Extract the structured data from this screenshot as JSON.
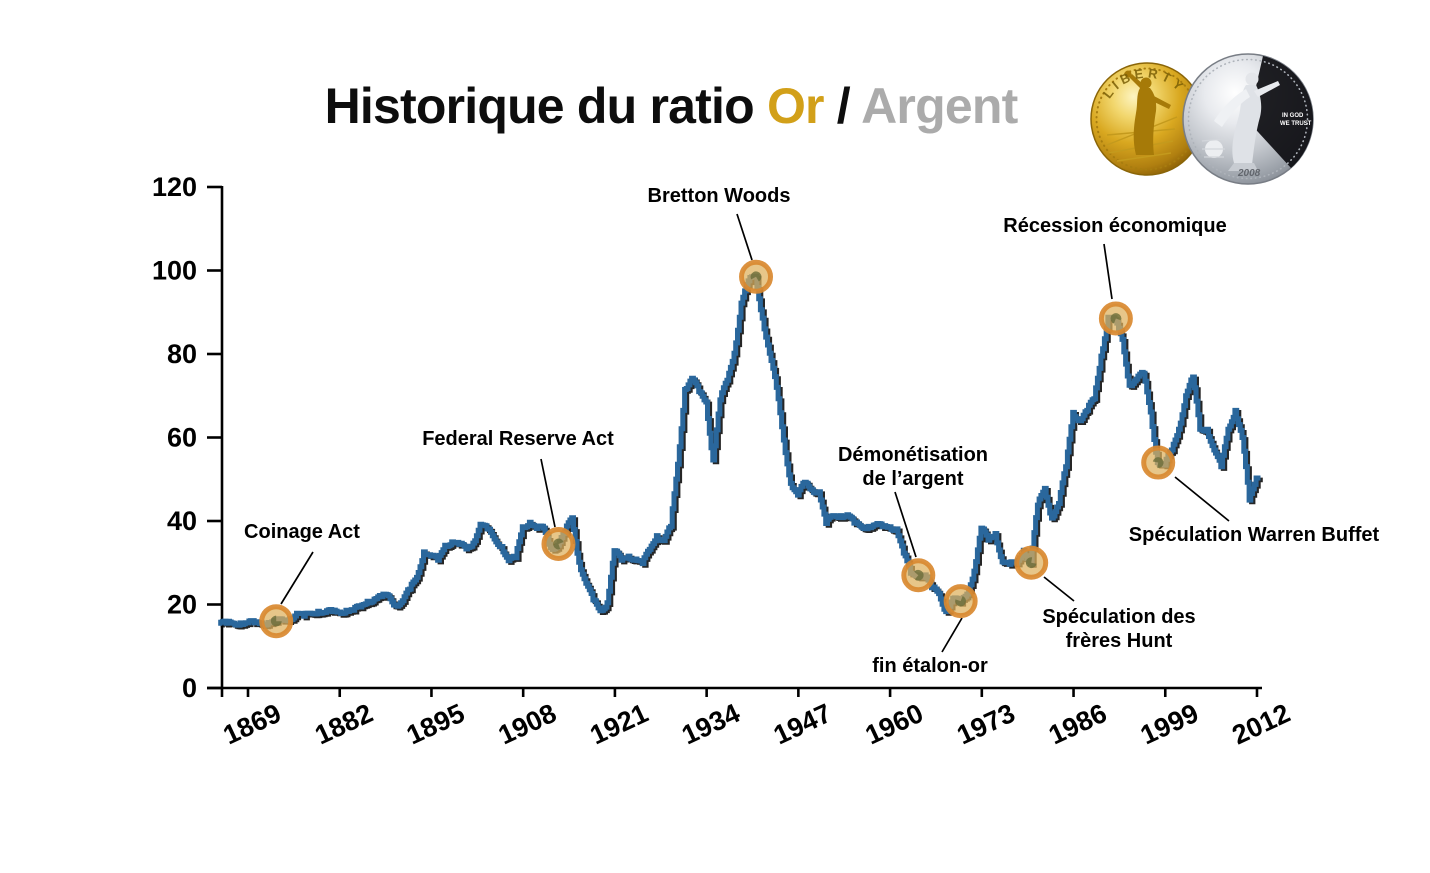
{
  "title": {
    "part1": "Historique du ratio ",
    "part2": "Or",
    "part3": " / ",
    "part4": "Argent"
  },
  "coins": {
    "gold_text": "LIBERTY",
    "silver_text_1": "IN GOD",
    "silver_text_2": "WE TRUST",
    "silver_year": "2008"
  },
  "colors": {
    "line": "#2a679c",
    "marker_ring": "#d98930",
    "marker_fill": "#deb05c",
    "marker_glyph": "#6c6d39",
    "title_gold": "#d2a019",
    "title_silver": "#ababab"
  },
  "chart_data": {
    "type": "line",
    "title": "Historique du ratio Or / Argent",
    "xlabel": "",
    "ylabel": "",
    "ylim": [
      0,
      120
    ],
    "grid": false,
    "xticks": [
      1869,
      1882,
      1895,
      1908,
      1921,
      1934,
      1947,
      1960,
      1973,
      1986,
      1999,
      2012
    ],
    "yticks": [
      0,
      20,
      40,
      60,
      80,
      100,
      120
    ],
    "x_start_year": 1865,
    "series": [
      {
        "name": "ratio Or / Argent",
        "values": [
          15.5,
          15.5,
          15.5,
          15.6,
          15.6,
          15.6,
          15.6,
          15.7,
          15.9,
          16.2,
          16.6,
          17.9,
          17.2,
          17.9,
          18.4,
          18.1,
          18.3,
          18.2,
          18.6,
          18.6,
          19.4,
          20.8,
          21.3,
          21.9,
          22.1,
          19.8,
          20.9,
          23.7,
          26.5,
          32.6,
          31.6,
          30.6,
          34.2,
          35.0,
          34.4,
          33.3,
          34.7,
          39.2,
          38.1,
          35.7,
          33.9,
          30.5,
          31.2,
          38.6,
          39.7,
          38.2,
          38.3,
          33.6,
          34.2,
          37.4,
          40.8,
          30.1,
          25.1,
          21.1,
          18.5,
          20.4,
          32.9,
          30.6,
          31.6,
          30.9,
          29.8,
          33.2,
          36.5,
          35.3,
          38.7,
          53.6,
          71.5,
          74.2,
          71.0,
          68.5,
          54.6,
          69.0,
          73.7,
          80.2,
          92.2,
          97.5,
          98.6,
          88.6,
          80.2,
          72.0,
          59.4,
          49.0,
          46.2,
          49.3,
          47.5,
          47.0,
          39.4,
          41.3,
          41.3,
          41.5,
          39.5,
          38.6,
          38.7,
          39.1,
          38.6,
          38.6,
          38.1,
          32.3,
          27.5,
          27.1,
          27.1,
          24.0,
          22.6,
          18.3,
          21.5,
          20.5,
          22.5,
          28.0,
          38.3,
          35.4,
          37.0,
          30.2,
          29.6,
          29.9,
          33.0,
          29.8,
          43.8,
          47.8,
          40.7,
          44.2,
          53.0,
          66.0,
          64.0,
          66.5,
          69.3,
          79.5,
          88.8,
          88.0,
          83.5,
          72.5,
          74.0,
          75.4,
          66.1,
          54.0,
          53.4,
          57.0,
          62.0,
          70.0,
          74.5,
          62.0,
          62.0,
          57.0,
          53.0,
          62.0,
          66.5,
          60.0,
          45.0,
          50.3
        ]
      }
    ],
    "events": [
      {
        "label": "Coinage Act",
        "year": 1873,
        "value": 16
      },
      {
        "label": "Federal Reserve Act",
        "year": 1913,
        "value": 34.5
      },
      {
        "label": "Bretton Woods",
        "year": 1941,
        "value": 98.5
      },
      {
        "label": "Démonétisation de l’argent",
        "year": 1964,
        "value": 27
      },
      {
        "label": "fin étalon-or",
        "year": 1970,
        "value": 20.8
      },
      {
        "label": "Spéculation des frères Hunt",
        "year": 1980,
        "value": 30
      },
      {
        "label": "Récession économique",
        "year": 1992,
        "value": 88.5
      },
      {
        "label": "Spéculation Warren Buffet",
        "year": 1998,
        "value": 54
      }
    ]
  }
}
